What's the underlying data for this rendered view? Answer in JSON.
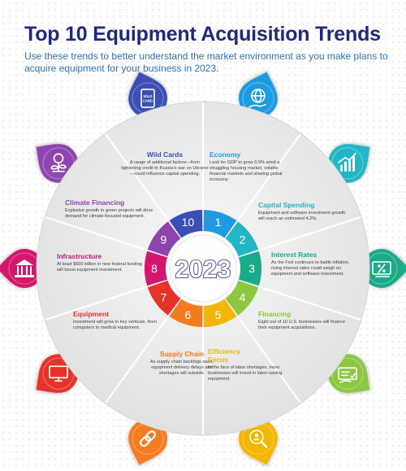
{
  "header": {
    "title": "Top 10 Equipment Acquisition Trends",
    "subtitle": "Use these trends to better understand the market environment as you make plans to acquire equipment for your business in 2023."
  },
  "center": {
    "year": "2023"
  },
  "colors": {
    "title": "#1f2a7a",
    "subtitle": "#2e73b8",
    "wheel_face": "#ececec",
    "year_text": "#ffffff",
    "trend_1": "#1e9be0",
    "trend_2": "#22b7c6",
    "trend_3": "#1bab8a",
    "trend_4": "#8dc63f",
    "trend_5": "#f2b705",
    "trend_6": "#f47b20",
    "trend_7": "#e6332a",
    "trend_8": "#d4156d",
    "trend_9": "#8e44ad",
    "trend_10": "#3a4fb5"
  },
  "trends": [
    {
      "number": "1",
      "title": "Economy",
      "body": "Look for GDP to grow 0.9% amid a struggling housing market, volatile financial markets and slowing global economy.",
      "color": "#1e9be0",
      "icon": "globe-hand-icon"
    },
    {
      "number": "2",
      "title": "Capital Spending",
      "body": "Equipment and software investment growth will reach an estimated 4.2%.",
      "color": "#22b7c6",
      "icon": "growth-chart-icon"
    },
    {
      "number": "3",
      "title": "Interest Rates",
      "body": "As the Fed continues to battle inflation, rising interest rates could weigh on equipment and software investment.",
      "color": "#1bab8a",
      "icon": "percent-cash-icon"
    },
    {
      "number": "4",
      "title": "Financing",
      "body": "Eight out of 10 U.S. businesses will finance their equipment acquisitions.",
      "color": "#8dc63f",
      "icon": "check-payment-icon"
    },
    {
      "number": "5",
      "title": "Efficiency Focus",
      "body": "In the face of labor shortages, more businesses will invest in labor-saving equipment.",
      "color": "#f2b705",
      "icon": "magnify-person-icon"
    },
    {
      "number": "6",
      "title": "Supply Chain",
      "body": "As supply chain backlogs ease, equipment delivery delays and shortages will subside.",
      "color": "#f47b20",
      "icon": "chain-link-icon"
    },
    {
      "number": "7",
      "title": "Equipment",
      "body": "Investment will grow in key verticals, from computers to medical equipment.",
      "color": "#e6332a",
      "icon": "computer-monitor-icon"
    },
    {
      "number": "8",
      "title": "Infrastructure",
      "body": "At least $600 billion in new federal funding will boost equipment investment.",
      "color": "#d4156d",
      "icon": "government-building-icon"
    },
    {
      "number": "9",
      "title": "Climate Financing",
      "body": "Explosive growth in green projects will drive demand for climate-focused equipment.",
      "color": "#8e44ad",
      "icon": "money-plant-icon"
    },
    {
      "number": "10",
      "title": "Wild Cards",
      "body": "A range of additional factors—from tightening credit to Russia's war on Ukraine—could influence capital spending.",
      "color": "#3a4fb5",
      "icon": "wild-card-icon"
    }
  ],
  "icon_labels": {
    "wild_card": "WILD CARD"
  }
}
